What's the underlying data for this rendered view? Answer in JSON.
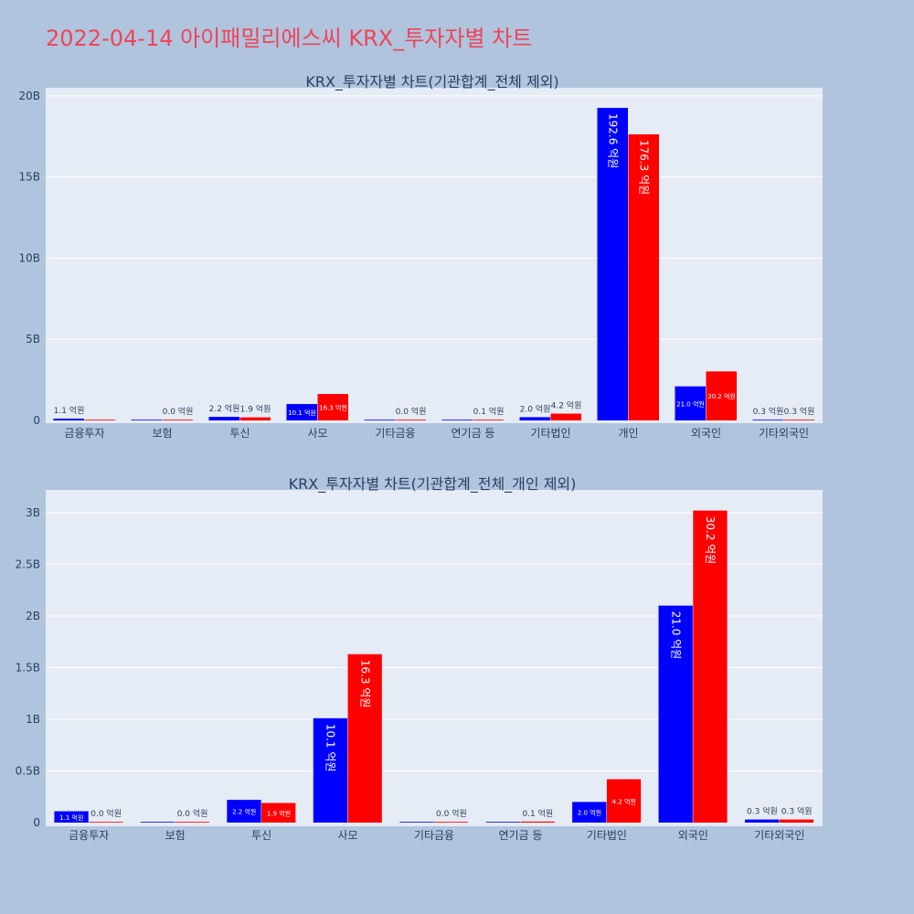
{
  "title": "2022-04-14 아이패밀리에스씨 KRX_투자자별 차트",
  "colors": {
    "buy": "#0000ff",
    "sell": "#ff0000",
    "plot_bg": "#e5ecf6",
    "page_bg": "#b0c4de",
    "title": "#ef4458"
  },
  "label_unit": "억원",
  "chart_data": [
    {
      "type": "bar",
      "title": "KRX_투자자별 차트(기관합계_전체 제외)",
      "categories": [
        "금융투자",
        "보험",
        "투신",
        "사모",
        "기타금융",
        "연기금 등",
        "기타법인",
        "개인",
        "외국인",
        "기타외국인"
      ],
      "series": [
        {
          "color": "#0000ff",
          "values": [
            0.11,
            0.0,
            0.22,
            1.01,
            0.0,
            0.0,
            0.2,
            19.26,
            2.1,
            0.03
          ]
        },
        {
          "color": "#ff0000",
          "values": [
            0.0,
            0.0,
            0.19,
            1.63,
            0.0,
            0.01,
            0.42,
            17.63,
            3.02,
            0.03
          ]
        }
      ],
      "labels": [
        [
          "1.1",
          "",
          "2.2",
          "10.1",
          "",
          "",
          "2.0",
          "192.6",
          "21.0",
          "0.3"
        ],
        [
          "",
          "0.0",
          "1.9",
          "16.3",
          "0.0",
          "0.1",
          "4.2",
          "176.3",
          "30.2",
          "0.3"
        ]
      ],
      "ylim": [
        0,
        20.5
      ],
      "yticks": [
        0,
        5,
        10,
        15,
        20
      ],
      "ytick_labels": [
        "0",
        "5B",
        "10B",
        "15B",
        "20B"
      ],
      "grid": true
    },
    {
      "type": "bar",
      "title": "KRX_투자자별 차트(기관합계_전체_개인 제외)",
      "categories": [
        "금융투자",
        "보험",
        "투신",
        "사모",
        "기타금융",
        "연기금 등",
        "기타법인",
        "외국인",
        "기타외국인"
      ],
      "series": [
        {
          "color": "#0000ff",
          "values": [
            0.11,
            0.0,
            0.22,
            1.01,
            0.0,
            0.0,
            0.2,
            2.1,
            0.03
          ]
        },
        {
          "color": "#ff0000",
          "values": [
            0.0,
            0.0,
            0.19,
            1.63,
            0.0,
            0.01,
            0.42,
            3.02,
            0.03
          ]
        }
      ],
      "labels": [
        [
          "1.1",
          "",
          "2.2",
          "10.1",
          "",
          "",
          "2.0",
          "21.0",
          "0.3"
        ],
        [
          "0.0",
          "0.0",
          "1.9",
          "16.3",
          "0.0",
          "0.1",
          "4.2",
          "30.2",
          "0.3"
        ]
      ],
      "ylim": [
        0,
        3.22
      ],
      "yticks": [
        0,
        0.5,
        1,
        1.5,
        2,
        2.5,
        3
      ],
      "ytick_labels": [
        "0",
        "0.5B",
        "1B",
        "1.5B",
        "2B",
        "2.5B",
        "3B"
      ],
      "grid": true
    }
  ]
}
